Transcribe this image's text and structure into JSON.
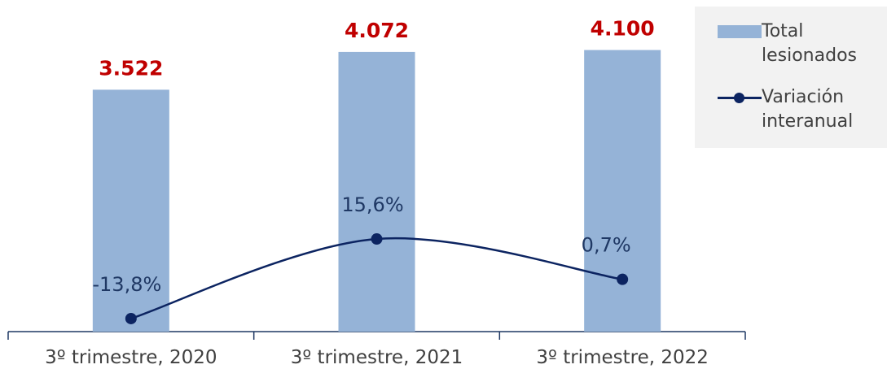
{
  "chart_data": {
    "type": "bar",
    "categories": [
      "3º trimestre, 2020",
      "3º trimestre, 2021",
      "3º trimestre, 2022"
    ],
    "series": [
      {
        "name": "Total lesionados",
        "type": "bar",
        "values": [
          3522,
          4072,
          4100
        ],
        "labels": [
          "3.522",
          "4.072",
          "4.100"
        ],
        "color": "#95b3d7",
        "label_color": "#c00000"
      },
      {
        "name": "Variación interanual",
        "type": "line",
        "values": [
          -13.8,
          15.6,
          0.7
        ],
        "labels": [
          "-13,8%",
          "15,6%",
          "0,7%"
        ],
        "color": "#0c2461",
        "label_color": "#1f3864"
      }
    ],
    "legend_position": "top-right",
    "grid": false
  },
  "legend": {
    "bar_line1": "Total",
    "bar_line2": "lesionados",
    "line_line1": "Variación",
    "line_line2": "interanual"
  }
}
